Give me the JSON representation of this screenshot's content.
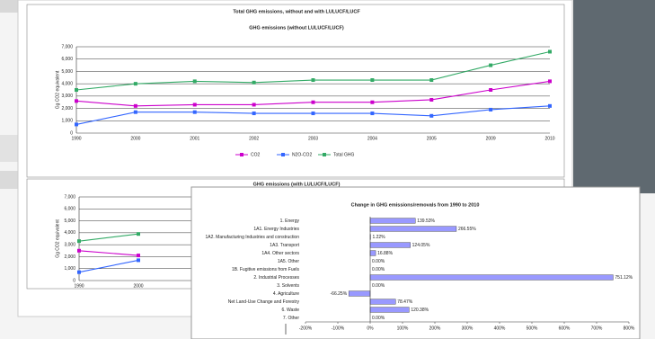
{
  "chart_data": [
    {
      "type": "line",
      "title": "Total GHG emissions, without and with LULUCF/LUCF",
      "subtitle": "GHG emissions (without LULUCF/LUCF)",
      "y_label": "Gg CO2 equivalent",
      "categories": [
        "1990",
        "2000",
        "2001",
        "2002",
        "2003",
        "2004",
        "2005",
        "2009",
        "2010"
      ],
      "series": [
        {
          "name": "CO2",
          "color": "#cc00cc",
          "values": [
            2600,
            2200,
            2300,
            2300,
            2500,
            2500,
            2700,
            3500,
            4200
          ]
        },
        {
          "name": "N2O-CO2",
          "color": "#3366ff",
          "values": [
            700,
            1700,
            1700,
            1600,
            1600,
            1600,
            1400,
            1900,
            2200
          ]
        },
        {
          "name": "Total GHG",
          "color": "#33aa66",
          "values": [
            3500,
            4000,
            4200,
            4100,
            4300,
            4300,
            4300,
            5500,
            6600
          ]
        }
      ],
      "ylim": [
        0,
        7000
      ],
      "yticks": [
        0,
        {
          "value": 1000,
          "label": "1,000"
        },
        {
          "value": 2000,
          "label": "2,000"
        },
        {
          "value": 3000,
          "label": "3,000"
        },
        {
          "value": 4000,
          "label": "4,000"
        },
        {
          "value": 5000,
          "label": "5,000"
        },
        {
          "value": 6000,
          "label": "6,000"
        },
        {
          "value": 7000,
          "label": "7,000"
        }
      ],
      "grid": true,
      "legend": "bottom"
    },
    {
      "type": "line",
      "subtitle": "GHG emissions (with LULUCF/LUCF)",
      "y_label": "Gg CO2 equivalent",
      "categories": [
        "1990",
        "2000"
      ],
      "series": [
        {
          "color": "#cc00cc",
          "values": [
            2500,
            2100
          ]
        },
        {
          "color": "#3366ff",
          "values": [
            700,
            1700
          ]
        },
        {
          "color": "#33aa66",
          "values": [
            3300,
            3900
          ]
        }
      ],
      "ylim": [
        0,
        7000
      ],
      "yticks": [
        0,
        {
          "value": 1000,
          "label": "1,000"
        },
        {
          "value": 2000,
          "label": "2,000"
        },
        {
          "value": 3000,
          "label": "3,000"
        },
        {
          "value": 4000,
          "label": "4,000"
        },
        {
          "value": 5000,
          "label": "5,000"
        },
        {
          "value": 6000,
          "label": "6,000"
        },
        {
          "value": 7000,
          "label": "7,000"
        }
      ],
      "grid": true
    },
    {
      "type": "hbar",
      "title": "Change in GHG emissions/removals from 1990 to 2010",
      "categories": [
        "1. Energy",
        "1A1. Energy Industries",
        "1A2. Manufacturing Industries and construction",
        "1A3. Transport",
        "1A4. Other sectors",
        "1A5. Other",
        "1B. Fugitive emissions from Fuels",
        "2. Industrial Processes",
        "3. Solvents",
        "4. Agriculture",
        "Net Land-Use Change and Forestry",
        "6. Waste",
        "7. Other"
      ],
      "values": [
        139.53,
        266.55,
        1.22,
        124.05,
        16.88,
        0,
        0,
        751.12,
        0,
        -66.25,
        78.47,
        120.38,
        0
      ],
      "value_labels": [
        "139.53%",
        "266.55%",
        "1.22%",
        "124.05%",
        "16.88%",
        "0.00%",
        "0.00%",
        "751.12%",
        "0.00%",
        "-66.25%",
        "78.47%",
        "120.38%",
        "0.00%"
      ],
      "color": "#9999ff",
      "xlim": [
        -200,
        800
      ],
      "xticks": [
        {
          "value": -200,
          "label": "-200%"
        },
        {
          "value": -100,
          "label": "-100%"
        },
        {
          "value": 0,
          "label": "0%"
        },
        {
          "value": 100,
          "label": "100%"
        },
        {
          "value": 200,
          "label": "200%"
        },
        {
          "value": 300,
          "label": "300%"
        },
        {
          "value": 400,
          "label": "400%"
        },
        {
          "value": 500,
          "label": "500%"
        },
        {
          "value": 600,
          "label": "600%"
        },
        {
          "value": 700,
          "label": "700%"
        },
        {
          "value": 800,
          "label": "800%"
        }
      ]
    }
  ]
}
